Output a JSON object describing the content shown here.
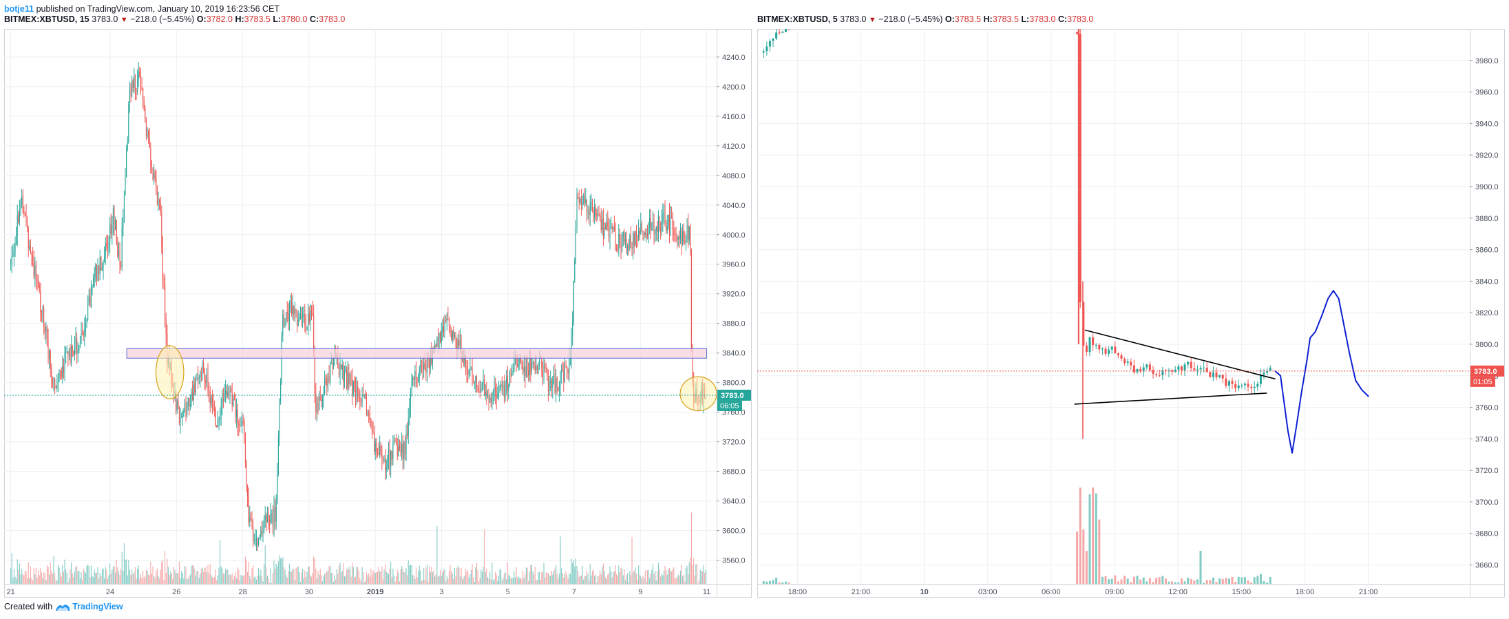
{
  "header": {
    "author": "botje11",
    "published_text": "published on TradingView.com, January 10, 2019 16:23:56 CET"
  },
  "footer": {
    "created_with": "Created with",
    "brand": "TradingView"
  },
  "colors": {
    "up": "#26a69a",
    "down": "#ef5350",
    "vol_up": "#80cbc4",
    "vol_down": "#f5a7a7",
    "grid": "#eceff2",
    "axis_text": "#4c525e",
    "zone_fill": "#f8d3dc",
    "zone_border": "#5b6bd8",
    "ellipse_fill": "#fff3b0",
    "ellipse_stroke": "#d4a017",
    "price_line_left": "#26a69a",
    "price_line_right": "#ef5350",
    "drawing_blue": "#0d1fd4",
    "triangle_line": "#000000"
  },
  "chart_data": [
    {
      "type": "candlestick",
      "panel": "left",
      "symbol": "BITMEX:XBTUSD",
      "interval": "15",
      "legend": {
        "change": "−218.0 (−5.45%)",
        "last": "3783.0",
        "O": "3782.0",
        "H": "3783.5",
        "L": "3780.0",
        "C": "3783.0"
      },
      "ylim": [
        3528,
        4278
      ],
      "y_ticks": [
        "4240.0",
        "4200.0",
        "4160.0",
        "4120.0",
        "4080.0",
        "4040.0",
        "4000.0",
        "3960.0",
        "3920.0",
        "3880.0",
        "3840.0",
        "3800.0",
        "3760.0",
        "3720.0",
        "3680.0",
        "3640.0",
        "3600.0",
        "3560.0"
      ],
      "x_ticks": [
        {
          "label": "21",
          "day": 0,
          "bold": false
        },
        {
          "label": "24",
          "day": 3,
          "bold": false
        },
        {
          "label": "26",
          "day": 5,
          "bold": false
        },
        {
          "label": "28",
          "day": 7,
          "bold": false
        },
        {
          "label": "30",
          "day": 9,
          "bold": false
        },
        {
          "label": "2019",
          "day": 11,
          "bold": true
        },
        {
          "label": "3",
          "day": 13,
          "bold": false
        },
        {
          "label": "5",
          "day": 15,
          "bold": false
        },
        {
          "label": "7",
          "day": 17,
          "bold": false
        },
        {
          "label": "9",
          "day": 19,
          "bold": false
        },
        {
          "label": "11",
          "day": 21,
          "bold": false
        }
      ],
      "x_range_days": [
        -0.2,
        21.3
      ],
      "last_price": 3783.0,
      "last_price_label": "3783.0",
      "countdown_label": "06:05",
      "anchors": [
        [
          0,
          3960
        ],
        [
          0.3,
          4050
        ],
        [
          0.6,
          3980
        ],
        [
          1.0,
          3880
        ],
        [
          1.3,
          3800
        ],
        [
          1.8,
          3840
        ],
        [
          2.2,
          3860
        ],
        [
          2.5,
          3940
        ],
        [
          2.9,
          3980
        ],
        [
          3.1,
          4030
        ],
        [
          3.3,
          3950
        ],
        [
          3.6,
          4200
        ],
        [
          3.9,
          4210
        ],
        [
          4.1,
          4140
        ],
        [
          4.3,
          4080
        ],
        [
          4.5,
          4040
        ],
        [
          4.7,
          3840
        ],
        [
          4.9,
          3800
        ],
        [
          5.1,
          3740
        ],
        [
          5.4,
          3780
        ],
        [
          5.8,
          3820
        ],
        [
          6.2,
          3750
        ],
        [
          6.5,
          3790
        ],
        [
          6.8,
          3760
        ],
        [
          7.0,
          3750
        ],
        [
          7.2,
          3610
        ],
        [
          7.4,
          3590
        ],
        [
          7.7,
          3610
        ],
        [
          8.0,
          3620
        ],
        [
          8.2,
          3880
        ],
        [
          8.5,
          3900
        ],
        [
          8.8,
          3880
        ],
        [
          9.1,
          3890
        ],
        [
          9.2,
          3760
        ],
        [
          9.5,
          3800
        ],
        [
          9.8,
          3830
        ],
        [
          10.2,
          3800
        ],
        [
          10.5,
          3780
        ],
        [
          10.8,
          3760
        ],
        [
          11.0,
          3710
        ],
        [
          11.3,
          3690
        ],
        [
          11.6,
          3710
        ],
        [
          11.9,
          3710
        ],
        [
          12.1,
          3800
        ],
        [
          12.4,
          3820
        ],
        [
          12.8,
          3840
        ],
        [
          13.1,
          3880
        ],
        [
          13.4,
          3860
        ],
        [
          13.7,
          3830
        ],
        [
          14.0,
          3800
        ],
        [
          14.3,
          3790
        ],
        [
          14.6,
          3780
        ],
        [
          14.9,
          3790
        ],
        [
          15.2,
          3830
        ],
        [
          15.5,
          3820
        ],
        [
          15.9,
          3830
        ],
        [
          16.2,
          3800
        ],
        [
          16.5,
          3800
        ],
        [
          16.9,
          3830
        ],
        [
          17.1,
          4060
        ],
        [
          17.4,
          4040
        ],
        [
          17.8,
          4010
        ],
        [
          18.1,
          4000
        ],
        [
          18.4,
          3990
        ],
        [
          18.7,
          3990
        ],
        [
          19.0,
          4010
        ],
        [
          19.3,
          4010
        ],
        [
          19.6,
          4020
        ],
        [
          20.0,
          4010
        ],
        [
          20.2,
          4000
        ],
        [
          20.5,
          4000
        ],
        [
          20.55,
          3790
        ],
        [
          20.8,
          3780
        ],
        [
          21.0,
          3783
        ]
      ],
      "resistance_zone": {
        "low": 3833,
        "high": 3846
      },
      "ellipses": [
        {
          "day": 4.8,
          "price": 3814,
          "rx_days": 0.42,
          "ry_price": 36
        },
        {
          "day": 20.75,
          "price": 3785,
          "rx_days": 0.55,
          "ry_price": 23
        }
      ]
    },
    {
      "type": "candlestick",
      "panel": "right",
      "symbol": "BITMEX:XBTUSD",
      "interval": "5",
      "legend": {
        "change": "−218.0 (−5.45%)",
        "last": "3783.0",
        "O": "3783.5",
        "H": "3783.5",
        "L": "3783.0",
        "C": "3783.0"
      },
      "ylim": [
        3648,
        4000
      ],
      "y_ticks": [
        "3980.0",
        "3960.0",
        "3940.0",
        "3920.0",
        "3900.0",
        "3880.0",
        "3860.0",
        "3840.0",
        "3820.0",
        "3800.0",
        "3780.0",
        "3760.0",
        "3740.0",
        "3720.0",
        "3700.0",
        "3680.0",
        "3660.0"
      ],
      "x_ticks": [
        {
          "label": "18:00",
          "hour": -6,
          "bold": false
        },
        {
          "label": "21:00",
          "hour": -3,
          "bold": false
        },
        {
          "label": "10",
          "hour": 0,
          "bold": true
        },
        {
          "label": "03:00",
          "hour": 3,
          "bold": false
        },
        {
          "label": "06:00",
          "hour": 6,
          "bold": false
        },
        {
          "label": "09:00",
          "hour": 9,
          "bold": false
        },
        {
          "label": "12:00",
          "hour": 12,
          "bold": false
        },
        {
          "label": "15:00",
          "hour": 15,
          "bold": false
        },
        {
          "label": "18:00",
          "hour": 18,
          "bold": false
        },
        {
          "label": "21:00",
          "hour": 21,
          "bold": false
        }
      ],
      "x_range_hours": [
        -7.9,
        25.8
      ],
      "last_price": 3783.0,
      "last_price_label": "3783.0",
      "countdown_label": "01:05",
      "anchors": [
        [
          -7.6,
          3985
        ],
        [
          -7.0,
          3996
        ],
        [
          -6.5,
          4000
        ],
        [
          7.2,
          3998
        ],
        [
          7.25,
          3998
        ],
        [
          7.35,
          3830
        ],
        [
          7.6,
          3790
        ],
        [
          7.8,
          3805
        ],
        [
          8.2,
          3795
        ],
        [
          8.6,
          3797
        ],
        [
          9.0,
          3796
        ],
        [
          9.5,
          3788
        ],
        [
          10.0,
          3782
        ],
        [
          10.5,
          3785
        ],
        [
          11.0,
          3782
        ],
        [
          11.5,
          3786
        ],
        [
          12.0,
          3783
        ],
        [
          12.5,
          3787
        ],
        [
          13.0,
          3785
        ],
        [
          13.5,
          3780
        ],
        [
          14.0,
          3778
        ],
        [
          14.5,
          3775
        ],
        [
          15.0,
          3774
        ],
        [
          15.5,
          3773
        ],
        [
          16.0,
          3780
        ],
        [
          16.4,
          3783
        ]
      ],
      "triangle": [
        {
          "from": [
            7.6,
            3809
          ],
          "to": [
            16.6,
            3778
          ]
        },
        {
          "from": [
            7.1,
            3762
          ],
          "to": [
            16.2,
            3769
          ]
        }
      ],
      "projection": [
        [
          16.6,
          3783
        ],
        [
          16.85,
          3780
        ],
        [
          17.0,
          3765
        ],
        [
          17.2,
          3745
        ],
        [
          17.4,
          3731
        ],
        [
          17.6,
          3748
        ],
        [
          17.85,
          3770
        ],
        [
          18.1,
          3790
        ],
        [
          18.25,
          3804
        ],
        [
          18.5,
          3808
        ],
        [
          18.8,
          3818
        ],
        [
          19.1,
          3829
        ],
        [
          19.35,
          3834
        ],
        [
          19.6,
          3829
        ],
        [
          19.85,
          3812
        ],
        [
          20.1,
          3795
        ],
        [
          20.4,
          3777
        ],
        [
          20.7,
          3771
        ],
        [
          21.0,
          3767
        ]
      ]
    }
  ]
}
